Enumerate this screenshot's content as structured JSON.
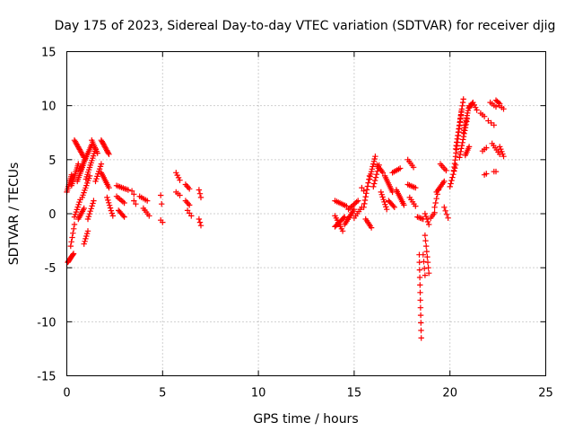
{
  "chart_data": {
    "type": "scatter",
    "title": "Day 175 of 2023, Sidereal Day-to-day VTEC variation (SDTVAR) for receiver djig",
    "xlabel": "GPS time / hours",
    "ylabel": "SDTVAR / TECUs",
    "xlim": [
      0,
      25
    ],
    "ylim": [
      -15,
      15
    ],
    "xticks": [
      0,
      5,
      10,
      15,
      20,
      25
    ],
    "yticks": [
      -15,
      -10,
      -5,
      0,
      5,
      10,
      15
    ],
    "grid": true,
    "marker": "+",
    "color": "#ff0000",
    "segments": [
      {
        "x0": 0.0,
        "x1": 0.25,
        "y0": 2.0,
        "y1": 3.6,
        "n": 10
      },
      {
        "x0": 0.05,
        "x1": 0.35,
        "y0": -4.5,
        "y1": -3.7,
        "n": 10
      },
      {
        "x0": 0.2,
        "x1": 0.4,
        "y0": -3.0,
        "y1": -1.0,
        "n": 6
      },
      {
        "x0": 0.25,
        "x1": 0.6,
        "y0": 2.6,
        "y1": 4.6,
        "n": 12
      },
      {
        "x0": 0.4,
        "x1": 0.9,
        "y0": 6.8,
        "y1": 5.2,
        "n": 14
      },
      {
        "x0": 0.4,
        "x1": 0.7,
        "y0": -0.3,
        "y1": 1.3,
        "n": 8
      },
      {
        "x0": 0.55,
        "x1": 0.95,
        "y0": 3.0,
        "y1": 5.0,
        "n": 12
      },
      {
        "x0": 0.6,
        "x1": 0.9,
        "y0": -0.5,
        "y1": 0.5,
        "n": 8
      },
      {
        "x0": 0.7,
        "x1": 1.3,
        "y0": 4.0,
        "y1": 6.4,
        "n": 16
      },
      {
        "x0": 0.8,
        "x1": 1.2,
        "y0": 1.5,
        "y1": 3.5,
        "n": 10
      },
      {
        "x0": 0.9,
        "x1": 1.1,
        "y0": -2.8,
        "y1": -1.6,
        "n": 6
      },
      {
        "x0": 1.0,
        "x1": 1.5,
        "y0": 3.2,
        "y1": 6.0,
        "n": 14
      },
      {
        "x0": 1.1,
        "x1": 1.4,
        "y0": -0.5,
        "y1": 1.2,
        "n": 8
      },
      {
        "x0": 1.3,
        "x1": 1.6,
        "y0": 6.8,
        "y1": 5.6,
        "n": 8
      },
      {
        "x0": 1.5,
        "x1": 1.8,
        "y0": 3.0,
        "y1": 4.6,
        "n": 8
      },
      {
        "x0": 1.8,
        "x1": 2.2,
        "y0": 6.8,
        "y1": 5.5,
        "n": 12
      },
      {
        "x0": 1.8,
        "x1": 2.2,
        "y0": 3.8,
        "y1": 2.4,
        "n": 10
      },
      {
        "x0": 2.1,
        "x1": 2.4,
        "y0": 1.5,
        "y1": -0.2,
        "n": 8
      },
      {
        "x0": 2.6,
        "x1": 3.2,
        "y0": 2.6,
        "y1": 2.2,
        "n": 8
      },
      {
        "x0": 2.6,
        "x1": 3.0,
        "y0": 1.6,
        "y1": 1.0,
        "n": 6
      },
      {
        "x0": 2.7,
        "x1": 3.0,
        "y0": 0.3,
        "y1": -0.3,
        "n": 6
      },
      {
        "x0": 3.4,
        "x1": 3.5,
        "y0": 2.1,
        "y1": 1.8,
        "n": 2
      },
      {
        "x0": 3.5,
        "x1": 3.6,
        "y0": 1.2,
        "y1": 0.9,
        "n": 2
      },
      {
        "x0": 3.8,
        "x1": 4.2,
        "y0": 1.6,
        "y1": 1.2,
        "n": 5
      },
      {
        "x0": 4.0,
        "x1": 4.3,
        "y0": 0.5,
        "y1": -0.2,
        "n": 5
      },
      {
        "x0": 4.9,
        "x1": 4.95,
        "y0": 1.7,
        "y1": 0.9,
        "n": 2
      },
      {
        "x0": 4.9,
        "x1": 5.0,
        "y0": -0.6,
        "y1": -0.8,
        "n": 2
      },
      {
        "x0": 5.7,
        "x1": 5.9,
        "y0": 3.8,
        "y1": 3.1,
        "n": 4
      },
      {
        "x0": 5.7,
        "x1": 5.9,
        "y0": 2.0,
        "y1": 1.7,
        "n": 3
      },
      {
        "x0": 6.2,
        "x1": 6.4,
        "y0": 2.7,
        "y1": 2.3,
        "n": 4
      },
      {
        "x0": 6.2,
        "x1": 6.4,
        "y0": 1.2,
        "y1": 0.8,
        "n": 4
      },
      {
        "x0": 6.3,
        "x1": 6.5,
        "y0": 0.3,
        "y1": -0.2,
        "n": 3
      },
      {
        "x0": 6.9,
        "x1": 7.0,
        "y0": 2.2,
        "y1": 1.5,
        "n": 3
      },
      {
        "x0": 6.9,
        "x1": 7.0,
        "y0": -0.5,
        "y1": -1.1,
        "n": 3
      },
      {
        "x0": 14.0,
        "x1": 14.6,
        "y0": 1.2,
        "y1": 0.7,
        "n": 8
      },
      {
        "x0": 14.0,
        "x1": 14.5,
        "y0": -1.2,
        "y1": -0.3,
        "n": 10
      },
      {
        "x0": 14.0,
        "x1": 14.4,
        "y0": -0.2,
        "y1": -1.6,
        "n": 8
      },
      {
        "x0": 14.5,
        "x1": 15.0,
        "y0": -1.0,
        "y1": 0.4,
        "n": 10
      },
      {
        "x0": 14.7,
        "x1": 15.2,
        "y0": 0.4,
        "y1": 1.2,
        "n": 8
      },
      {
        "x0": 15.0,
        "x1": 15.4,
        "y0": -0.4,
        "y1": 0.6,
        "n": 6
      },
      {
        "x0": 15.4,
        "x1": 15.5,
        "y0": 2.4,
        "y1": 2.1,
        "n": 2
      },
      {
        "x0": 15.5,
        "x1": 15.8,
        "y0": 0.6,
        "y1": 3.5,
        "n": 10
      },
      {
        "x0": 15.6,
        "x1": 15.9,
        "y0": -0.5,
        "y1": -1.3,
        "n": 6
      },
      {
        "x0": 15.8,
        "x1": 16.1,
        "y0": 3.2,
        "y1": 5.3,
        "n": 10
      },
      {
        "x0": 16.0,
        "x1": 16.3,
        "y0": 2.5,
        "y1": 4.5,
        "n": 8
      },
      {
        "x0": 16.2,
        "x1": 16.5,
        "y0": 4.5,
        "y1": 3.8,
        "n": 6
      },
      {
        "x0": 16.4,
        "x1": 16.7,
        "y0": 2.0,
        "y1": 0.4,
        "n": 8
      },
      {
        "x0": 16.6,
        "x1": 17.0,
        "y0": 3.5,
        "y1": 2.0,
        "n": 10
      },
      {
        "x0": 16.8,
        "x1": 17.1,
        "y0": 1.2,
        "y1": 0.6,
        "n": 6
      },
      {
        "x0": 17.0,
        "x1": 17.4,
        "y0": 3.8,
        "y1": 4.2,
        "n": 6
      },
      {
        "x0": 17.2,
        "x1": 17.6,
        "y0": 2.2,
        "y1": 0.8,
        "n": 10
      },
      {
        "x0": 17.8,
        "x1": 18.1,
        "y0": 5.0,
        "y1": 4.3,
        "n": 5
      },
      {
        "x0": 17.8,
        "x1": 18.2,
        "y0": 2.7,
        "y1": 2.4,
        "n": 6
      },
      {
        "x0": 17.9,
        "x1": 18.2,
        "y0": 1.5,
        "y1": 0.7,
        "n": 5
      },
      {
        "x0": 18.3,
        "x1": 18.6,
        "y0": -0.3,
        "y1": -0.5,
        "n": 5
      },
      {
        "x0": 18.4,
        "x1": 18.5,
        "y0": -3.8,
        "y1": -11.5,
        "n": 12
      },
      {
        "x0": 18.6,
        "x1": 18.7,
        "y0": -3.8,
        "y1": -5.7,
        "n": 4
      },
      {
        "x0": 18.7,
        "x1": 18.9,
        "y0": -2.0,
        "y1": -5.5,
        "n": 8
      },
      {
        "x0": 18.7,
        "x1": 18.9,
        "y0": 0.0,
        "y1": -1.0,
        "n": 5
      },
      {
        "x0": 19.0,
        "x1": 19.2,
        "y0": -0.4,
        "y1": 0.1,
        "n": 4
      },
      {
        "x0": 19.2,
        "x1": 19.4,
        "y0": 0.6,
        "y1": 2.2,
        "n": 5
      },
      {
        "x0": 19.3,
        "x1": 19.7,
        "y0": 2.0,
        "y1": 3.0,
        "n": 8
      },
      {
        "x0": 19.5,
        "x1": 19.8,
        "y0": 4.6,
        "y1": 4.0,
        "n": 5
      },
      {
        "x0": 19.7,
        "x1": 19.9,
        "y0": 0.6,
        "y1": -0.4,
        "n": 4
      },
      {
        "x0": 20.0,
        "x1": 20.3,
        "y0": 2.5,
        "y1": 4.5,
        "n": 8
      },
      {
        "x0": 20.2,
        "x1": 20.6,
        "y0": 4.0,
        "y1": 9.5,
        "n": 18
      },
      {
        "x0": 20.3,
        "x1": 20.7,
        "y0": 6.0,
        "y1": 10.6,
        "n": 16
      },
      {
        "x0": 20.5,
        "x1": 20.9,
        "y0": 5.2,
        "y1": 8.8,
        "n": 14
      },
      {
        "x0": 20.7,
        "x1": 21.0,
        "y0": 7.5,
        "y1": 10.0,
        "n": 12
      },
      {
        "x0": 20.8,
        "x1": 21.0,
        "y0": 5.4,
        "y1": 6.2,
        "n": 6
      },
      {
        "x0": 21.0,
        "x1": 21.2,
        "y0": 9.8,
        "y1": 10.3,
        "n": 6
      },
      {
        "x0": 21.2,
        "x1": 21.4,
        "y0": 10.3,
        "y1": 9.6,
        "n": 4
      },
      {
        "x0": 21.6,
        "x1": 21.8,
        "y0": 9.3,
        "y1": 9.0,
        "n": 3
      },
      {
        "x0": 21.7,
        "x1": 21.9,
        "y0": 5.8,
        "y1": 6.1,
        "n": 3
      },
      {
        "x0": 21.8,
        "x1": 21.9,
        "y0": 3.6,
        "y1": 3.7,
        "n": 2
      },
      {
        "x0": 22.0,
        "x1": 22.3,
        "y0": 8.6,
        "y1": 8.2,
        "n": 3
      },
      {
        "x0": 22.1,
        "x1": 22.4,
        "y0": 10.3,
        "y1": 9.9,
        "n": 4
      },
      {
        "x0": 22.2,
        "x1": 22.6,
        "y0": 6.5,
        "y1": 5.5,
        "n": 6
      },
      {
        "x0": 22.3,
        "x1": 22.4,
        "y0": 3.9,
        "y1": 3.9,
        "n": 2
      },
      {
        "x0": 22.4,
        "x1": 22.6,
        "y0": 10.5,
        "y1": 10.2,
        "n": 4
      },
      {
        "x0": 22.6,
        "x1": 22.8,
        "y0": 10.0,
        "y1": 9.7,
        "n": 3
      },
      {
        "x0": 22.6,
        "x1": 22.8,
        "y0": 6.2,
        "y1": 5.3,
        "n": 5
      }
    ]
  }
}
